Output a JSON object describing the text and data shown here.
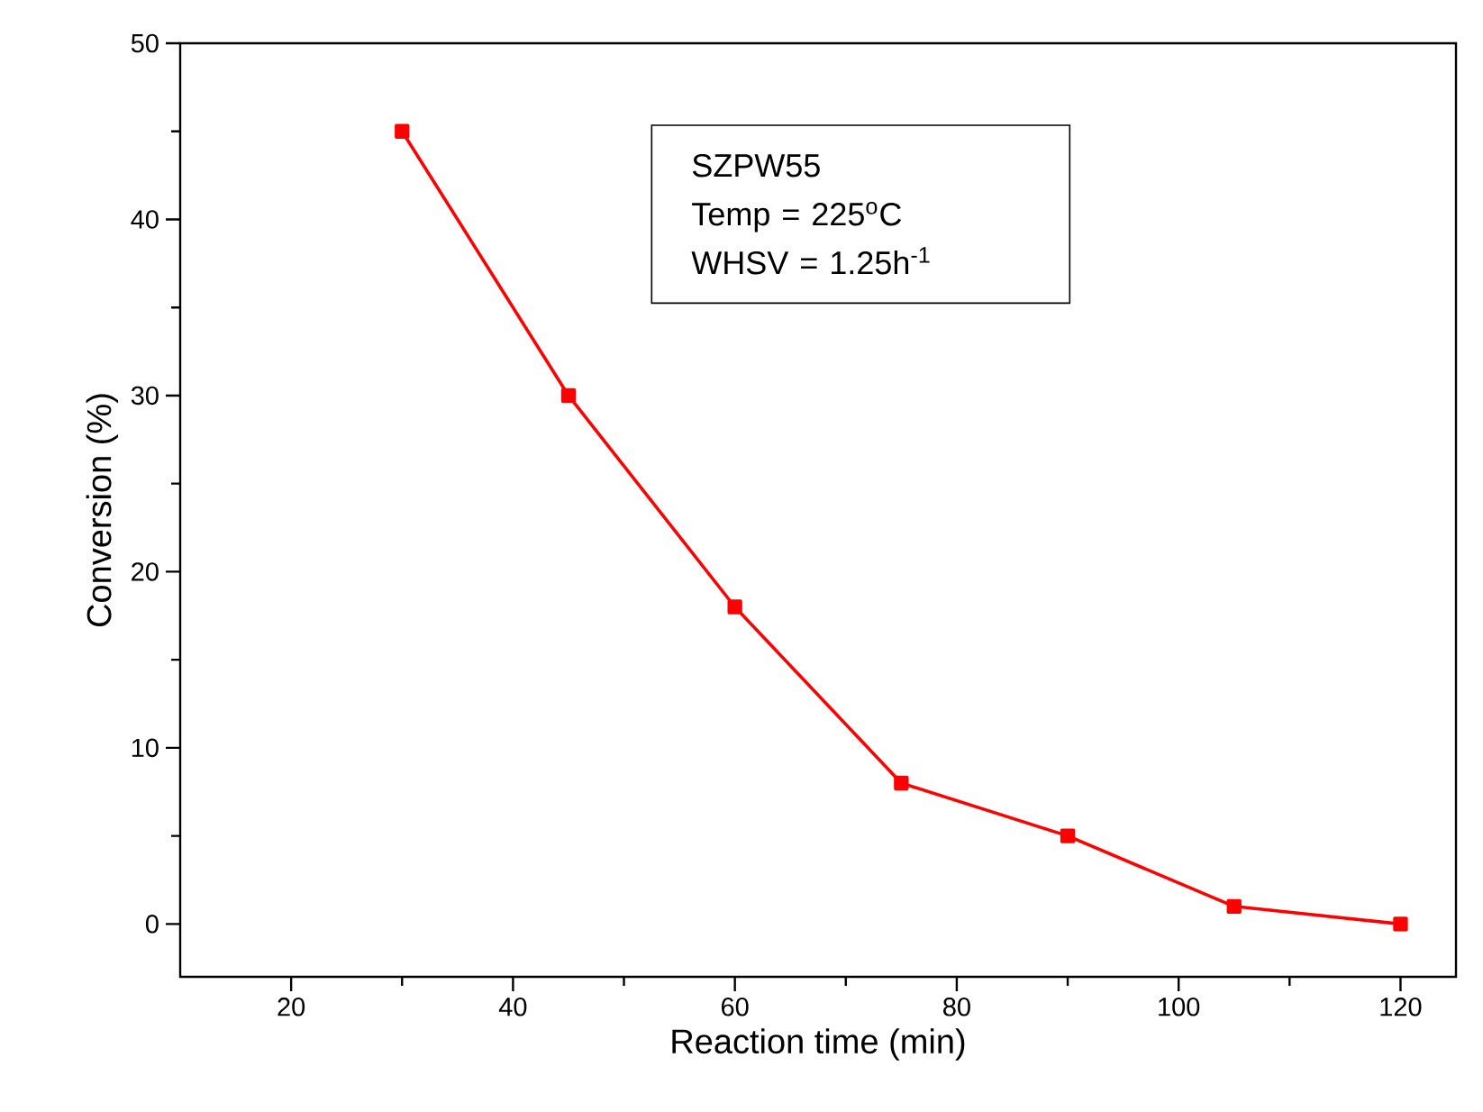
{
  "chart_data": {
    "type": "line",
    "xlabel": "Reaction time (min)",
    "ylabel": "Conversion (%)",
    "x": [
      30,
      45,
      60,
      75,
      90,
      105,
      120
    ],
    "series": [
      {
        "color": "#ff0000",
        "values": [
          45,
          30,
          18,
          8,
          5,
          1,
          0
        ]
      }
    ],
    "xlim": [
      10,
      125
    ],
    "ylim": [
      -3,
      50
    ],
    "xticks": [
      20,
      40,
      60,
      80,
      100,
      120
    ],
    "yticks": [
      0,
      10,
      20,
      30,
      40,
      50
    ],
    "marker": "square",
    "line_style": "solid",
    "annotations": [
      "SZPW55",
      "Temp = 225$^{o}$C",
      "WHSV = 1.25h$^{-1}$"
    ]
  }
}
